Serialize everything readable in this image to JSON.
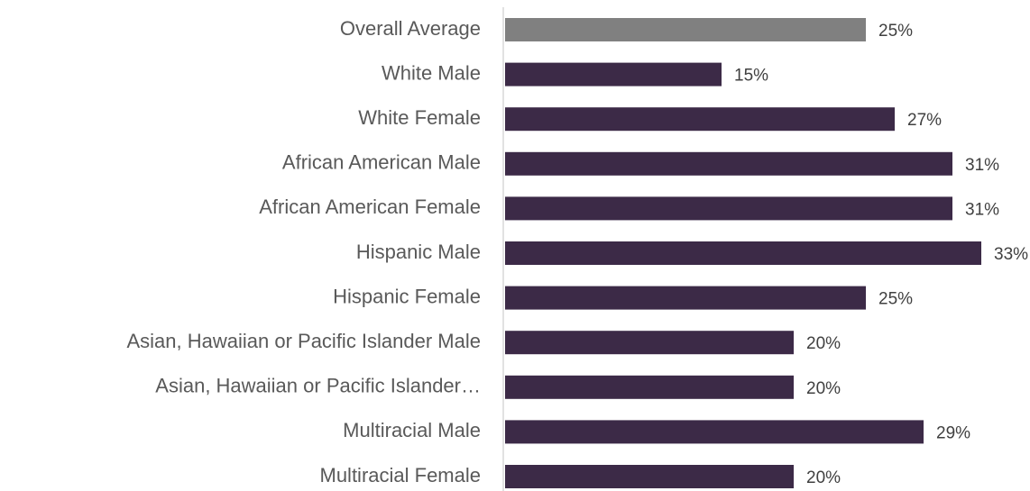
{
  "chart_data": {
    "type": "barh",
    "categories": [
      "Overall Average",
      "White Male",
      "White Female",
      "African American Male",
      "African American Female",
      "Hispanic Male",
      "Hispanic Female",
      "Asian, Hawaiian or Pacific Islander Male",
      "Asian, Hawaiian or Pacific Islander…",
      "Multiracial Male",
      "Multiracial Female"
    ],
    "values": [
      25,
      15,
      27,
      31,
      31,
      33,
      25,
      20,
      20,
      29,
      20
    ],
    "value_labels": [
      "25%",
      "15%",
      "27%",
      "31%",
      "31%",
      "33%",
      "25%",
      "20%",
      "20%",
      "29%",
      "20%"
    ],
    "colors": [
      "#808080",
      "#3c2a47",
      "#3c2a47",
      "#3c2a47",
      "#3c2a47",
      "#3c2a47",
      "#3c2a47",
      "#3c2a47",
      "#3c2a47",
      "#3c2a47",
      "#3c2a47"
    ]
  }
}
